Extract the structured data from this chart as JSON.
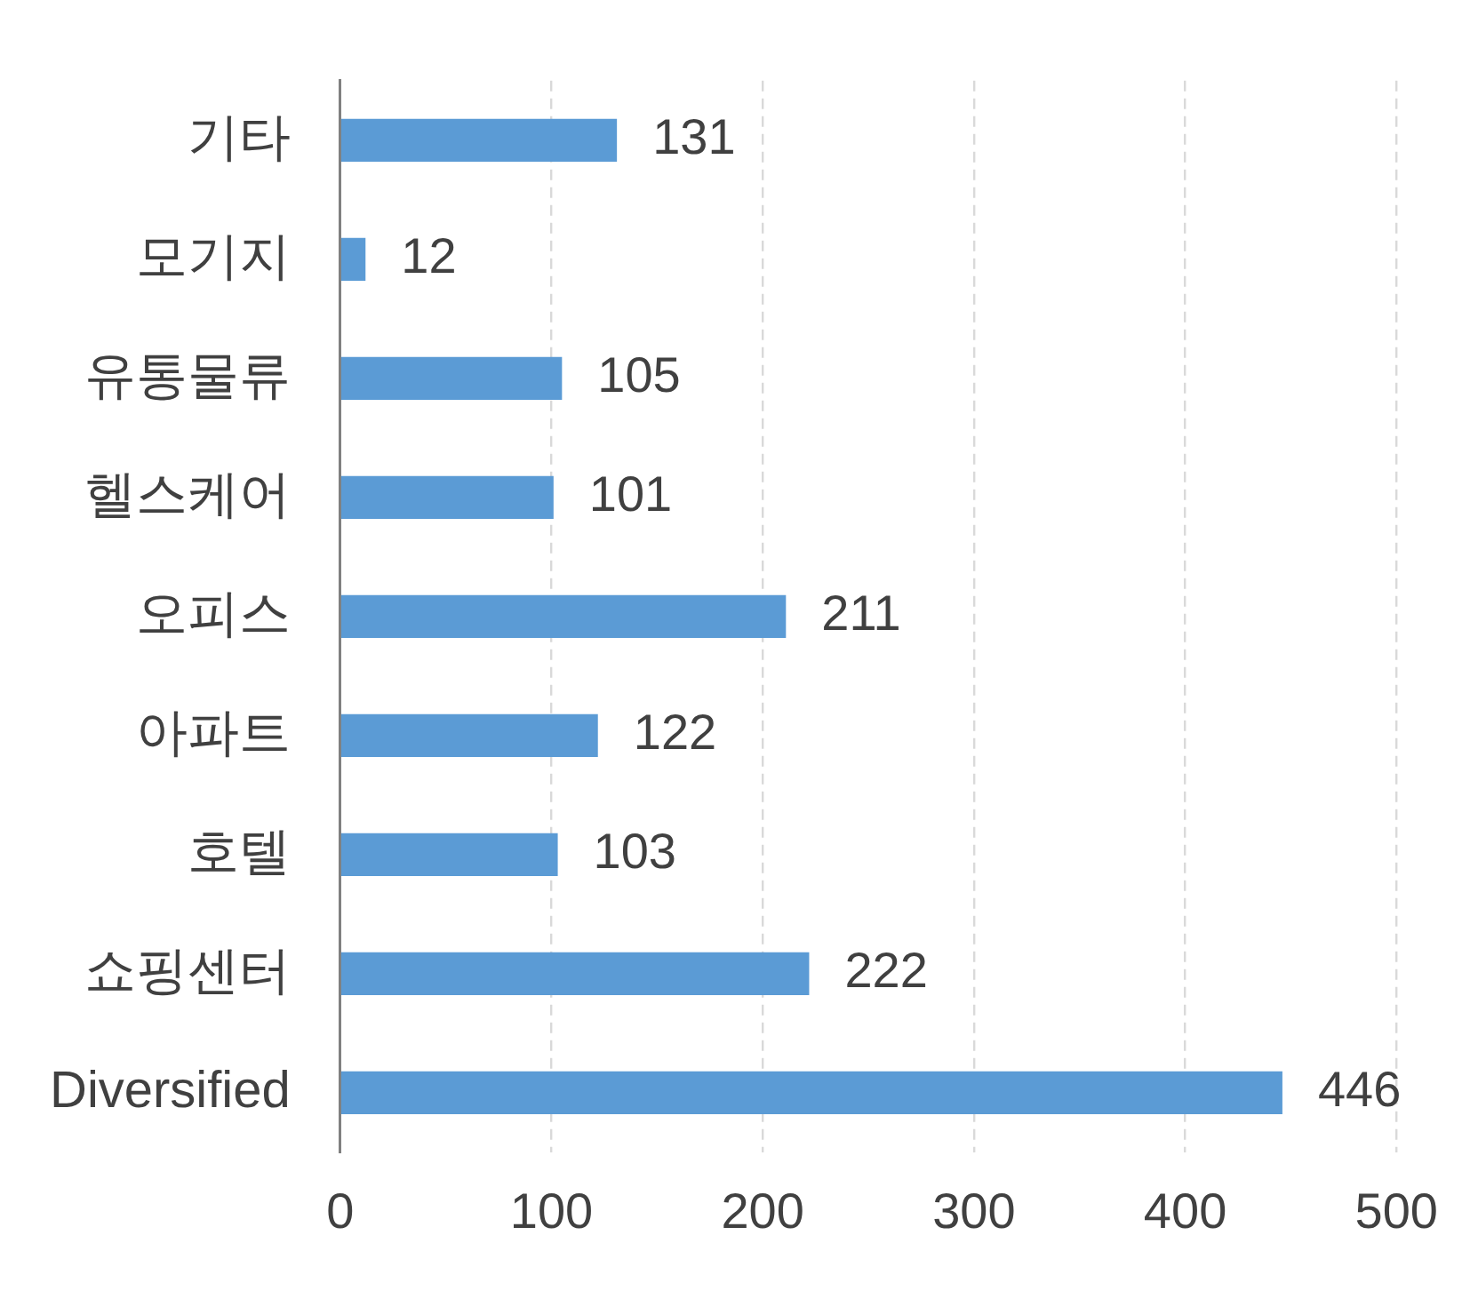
{
  "chart_data": {
    "type": "bar",
    "orientation": "horizontal",
    "categories": [
      "기타",
      "모기지",
      "유통물류",
      "헬스케어",
      "오피스",
      "아파트",
      "호텔",
      "쇼핑센터",
      "Diversified"
    ],
    "values": [
      131,
      12,
      105,
      101,
      211,
      122,
      103,
      222,
      446
    ],
    "color": "#5b9bd5",
    "xlim": [
      0,
      500
    ],
    "xticks": [
      0,
      100,
      200,
      300,
      400,
      500
    ],
    "grid": "x",
    "data_labels": true,
    "legend": false
  }
}
